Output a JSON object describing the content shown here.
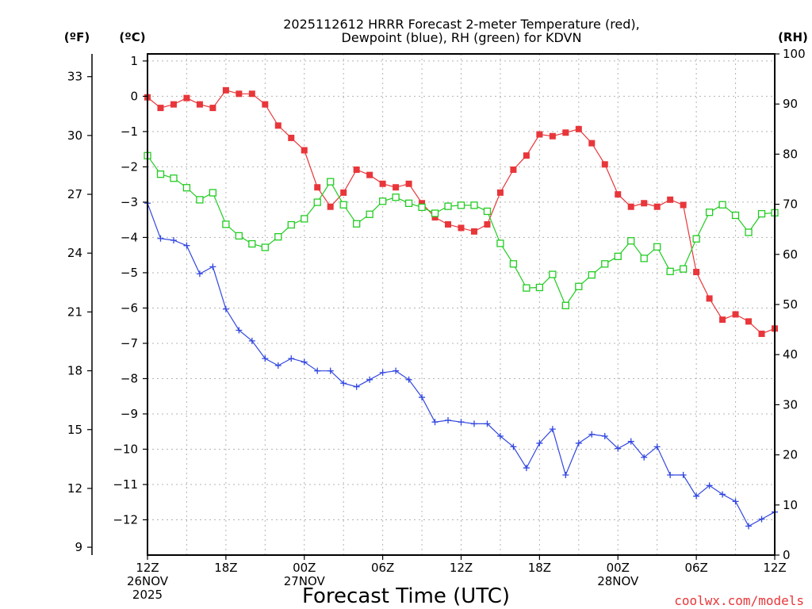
{
  "chart_data": {
    "type": "line",
    "title_line1": "2025112612 HRRR Forecast 2-meter Temperature (red),",
    "title_line2": "Dewpoint (blue), RH (green) for KDVN",
    "xlabel": "Forecast Time (UTC)",
    "watermark": "coolwx.com/models",
    "unit_labels": {
      "fahrenheit": "(ºF)",
      "celsius": "(ºC)",
      "rh": "(RH)"
    },
    "colors": {
      "temperature": "#e8363a",
      "dewpoint": "#3348e0",
      "rh": "#22cc22",
      "grid": "#b4b4b4"
    },
    "x_range": [
      0,
      48
    ],
    "x_ticks": [
      {
        "x": 0,
        "label": "12Z",
        "date": "26NOV",
        "year": "2025"
      },
      {
        "x": 6,
        "label": "18Z"
      },
      {
        "x": 12,
        "label": "00Z",
        "date": "27NOV"
      },
      {
        "x": 18,
        "label": "06Z"
      },
      {
        "x": 24,
        "label": "12Z"
      },
      {
        "x": 30,
        "label": "18Z"
      },
      {
        "x": 36,
        "label": "00Z",
        "date": "28NOV"
      },
      {
        "x": 42,
        "label": "06Z"
      },
      {
        "x": 48,
        "label": "12Z"
      }
    ],
    "celsius_axis": {
      "range": [
        -13.0,
        1.2
      ],
      "ticks": [
        "1",
        "0",
        "−1",
        "−2",
        "−3",
        "−4",
        "−5",
        "−6",
        "−7",
        "−8",
        "−9",
        "−10",
        "−11",
        "−12"
      ],
      "tick_values": [
        1,
        0,
        -1,
        -2,
        -3,
        -4,
        -5,
        -6,
        -7,
        -8,
        -9,
        -10,
        -11,
        -12
      ]
    },
    "fahrenheit_axis": {
      "range": [
        8.6,
        34.16
      ],
      "ticks": [
        "33",
        "30",
        "27",
        "24",
        "21",
        "18",
        "15",
        "12",
        "9"
      ],
      "tick_values": [
        33,
        30,
        27,
        24,
        21,
        18,
        15,
        12,
        9
      ]
    },
    "rh_axis": {
      "range": [
        0,
        100
      ],
      "ticks": [
        "100",
        "90",
        "80",
        "70",
        "60",
        "50",
        "40",
        "30",
        "20",
        "10",
        "0"
      ],
      "tick_values": [
        100,
        90,
        80,
        70,
        60,
        50,
        40,
        30,
        20,
        10,
        0
      ]
    },
    "series": [
      {
        "name": "Temperature",
        "axis": "celsius",
        "marker": "filled-square",
        "values": [
          -0.03,
          -0.33,
          -0.23,
          -0.05,
          -0.23,
          -0.33,
          0.17,
          0.07,
          0.07,
          -0.23,
          -0.83,
          -1.18,
          -1.53,
          -2.58,
          -3.13,
          -2.73,
          -2.08,
          -2.23,
          -2.48,
          -2.58,
          -2.48,
          -3.03,
          -3.43,
          -3.63,
          -3.73,
          -3.83,
          -3.63,
          -2.73,
          -2.08,
          -1.68,
          -1.08,
          -1.13,
          -1.03,
          -0.93,
          -1.33,
          -1.93,
          -2.78,
          -3.13,
          -3.03,
          -3.13,
          -2.93,
          -3.08,
          -4.98,
          -5.73,
          -6.33,
          -6.18,
          -6.38,
          -6.73,
          -6.58
        ]
      },
      {
        "name": "Dewpoint",
        "axis": "celsius",
        "marker": "plus",
        "values": [
          -3.03,
          -4.03,
          -4.08,
          -4.23,
          -5.03,
          -4.83,
          -6.03,
          -6.63,
          -6.93,
          -7.43,
          -7.63,
          -7.43,
          -7.53,
          -7.78,
          -7.78,
          -8.13,
          -8.23,
          -8.03,
          -7.83,
          -7.78,
          -8.03,
          -8.53,
          -9.23,
          -9.18,
          -9.23,
          -9.28,
          -9.28,
          -9.63,
          -9.93,
          -10.53,
          -9.83,
          -9.43,
          -10.73,
          -9.83,
          -9.58,
          -9.63,
          -9.98,
          -9.78,
          -10.23,
          -9.93,
          -10.73,
          -10.73,
          -11.33,
          -11.03,
          -11.28,
          -11.48,
          -12.18,
          -11.98,
          -11.78
        ]
      },
      {
        "name": "RH",
        "axis": "rh",
        "marker": "open-square",
        "values": [
          79.7,
          76,
          75.2,
          73.3,
          70.9,
          72.3,
          66,
          63.7,
          62.1,
          61.4,
          63.5,
          65.9,
          67.1,
          70.4,
          74.5,
          69.9,
          66.1,
          68,
          70.6,
          71.4,
          70.2,
          69.4,
          68.2,
          69.6,
          69.8,
          69.8,
          68.6,
          62.2,
          58.1,
          53.3,
          53.4,
          56,
          49.8,
          53.6,
          55.9,
          58.1,
          59.6,
          62.7,
          59.2,
          61.5,
          56.6,
          57.1,
          63.1,
          68.4,
          69.9,
          67.8,
          64.4,
          68.1,
          68.3
        ]
      }
    ]
  }
}
